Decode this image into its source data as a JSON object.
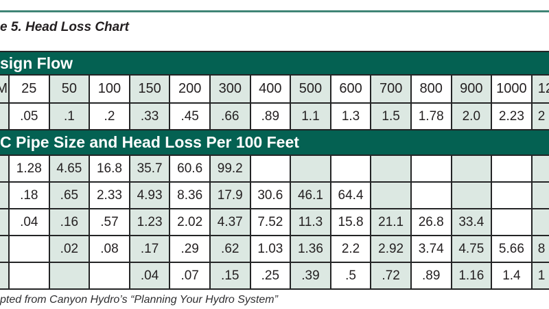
{
  "page": {
    "title_fragment": "e 5. Head Loss Chart",
    "footer_note_fragment": "pted from Canyon Hydro’s “Planning Your Hydro System”"
  },
  "colors": {
    "section_bar_green": "#046152",
    "cell_light_green": "#DCE8E2",
    "grid_border": "#232425",
    "top_rule_teal": "#3F8576",
    "outer_bottom_border": "#54565A"
  },
  "table": {
    "section_headers": {
      "design_flow_fragment": "sign Flow",
      "pipe_size_fragment": "C Pipe Size and Head Loss Per 100 Feet"
    },
    "gpm_row": [
      "M",
      "25",
      "50",
      "100",
      "150",
      "200",
      "300",
      "400",
      "500",
      "600",
      "700",
      "800",
      "900",
      "1000",
      "12"
    ],
    "velocity_row": [
      "",
      ".05",
      ".1",
      ".2",
      ".33",
      ".45",
      ".66",
      ".89",
      "1.1",
      "1.3",
      "1.5",
      "1.78",
      "2.0",
      "2.23",
      "2"
    ],
    "head_loss_rows": [
      [
        "",
        "1.28",
        "4.65",
        "16.8",
        "35.7",
        "60.6",
        "99.2",
        "",
        "",
        "",
        "",
        "",
        "",
        "",
        ""
      ],
      [
        "",
        ".18",
        ".65",
        "2.33",
        "4.93",
        "8.36",
        "17.9",
        "30.6",
        "46.1",
        "64.4",
        "",
        "",
        "",
        "",
        ""
      ],
      [
        "",
        ".04",
        ".16",
        ".57",
        "1.23",
        "2.02",
        "4.37",
        "7.52",
        "11.3",
        "15.8",
        "21.1",
        "26.8",
        "33.4",
        "",
        ""
      ],
      [
        "",
        "",
        ".02",
        ".08",
        ".17",
        ".29",
        ".62",
        "1.03",
        "1.36",
        "2.2",
        "2.92",
        "3.74",
        "4.75",
        "5.66",
        "8"
      ],
      [
        "",
        "",
        "",
        "",
        ".04",
        ".07",
        ".15",
        ".25",
        ".39",
        ".5",
        ".72",
        ".89",
        "1.16",
        "1.4",
        "1"
      ]
    ]
  }
}
